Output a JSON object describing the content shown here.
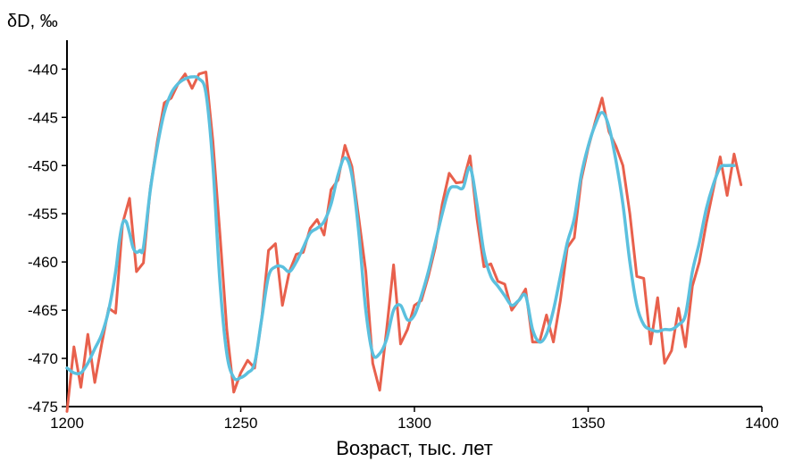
{
  "chart_data": {
    "type": "line",
    "xlabel": "Возраст, тыс. лет",
    "ylabel": "δD, ‰",
    "xlim": [
      1200,
      1400
    ],
    "ylim": [
      -475,
      -437
    ],
    "xticks": [
      1200,
      1250,
      1300,
      1350,
      1400
    ],
    "yticks": [
      -475,
      -470,
      -465,
      -460,
      -455,
      -450,
      -445,
      -440
    ],
    "grid": false,
    "legend": "none",
    "series": [
      {
        "color": "#E8604C",
        "style": "raw",
        "x": [
          1200,
          1202,
          1204,
          1206,
          1208,
          1210,
          1212,
          1214,
          1216,
          1218,
          1220,
          1222,
          1224,
          1226,
          1228,
          1230,
          1232,
          1234,
          1236,
          1238,
          1240,
          1242,
          1244,
          1246,
          1248,
          1250,
          1252,
          1254,
          1256,
          1258,
          1260,
          1262,
          1264,
          1266,
          1268,
          1270,
          1272,
          1274,
          1276,
          1278,
          1280,
          1282,
          1284,
          1286,
          1288,
          1290,
          1292,
          1294,
          1296,
          1298,
          1300,
          1302,
          1304,
          1306,
          1308,
          1310,
          1312,
          1314,
          1316,
          1318,
          1320,
          1322,
          1324,
          1326,
          1328,
          1330,
          1332,
          1334,
          1336,
          1338,
          1340,
          1342,
          1344,
          1346,
          1348,
          1350,
          1352,
          1354,
          1356,
          1358,
          1360,
          1362,
          1364,
          1366,
          1368,
          1370,
          1372,
          1374,
          1376,
          1378,
          1380,
          1382,
          1384,
          1386,
          1388,
          1390,
          1392,
          1394
        ],
        "y": [
          -475.5,
          -468.8,
          -473,
          -467.5,
          -472.5,
          -468.5,
          -464.8,
          -465.3,
          -456,
          -453.4,
          -461,
          -460.1,
          -452.3,
          -447.5,
          -443.5,
          -443,
          -441.5,
          -440.5,
          -442,
          -440.5,
          -440.3,
          -447.5,
          -457,
          -467,
          -473.5,
          -471.5,
          -470.2,
          -471,
          -466,
          -458.8,
          -458.1,
          -464.5,
          -461,
          -459.2,
          -459,
          -456.5,
          -455.6,
          -457.2,
          -452.5,
          -451.5,
          -447.9,
          -450.1,
          -455.5,
          -461,
          -470.5,
          -473.3,
          -467,
          -460.3,
          -468.5,
          -467,
          -464.5,
          -464,
          -461.5,
          -458.5,
          -454,
          -450.8,
          -451.8,
          -451.7,
          -449,
          -455.5,
          -460.5,
          -460.2,
          -462,
          -462.3,
          -465,
          -464,
          -462.8,
          -468.3,
          -468.3,
          -465.5,
          -468.3,
          -464,
          -458.5,
          -457.5,
          -451.5,
          -448.2,
          -445.5,
          -443,
          -446.5,
          -448,
          -450,
          -455,
          -461.5,
          -461.7,
          -468.5,
          -463.7,
          -470.5,
          -469.2,
          -464.8,
          -468.8,
          -462.5,
          -460,
          -456,
          -452.5,
          -449.1,
          -453.1,
          -448.8,
          -452
        ]
      },
      {
        "color": "#5BC0DE",
        "style": "smoothed",
        "x": [
          1200,
          1202,
          1204,
          1206,
          1208,
          1210,
          1212,
          1214,
          1215,
          1216,
          1217,
          1218,
          1219,
          1220,
          1221,
          1222,
          1224,
          1226,
          1228,
          1230,
          1232,
          1234,
          1236,
          1238,
          1240,
          1242,
          1244,
          1246,
          1248,
          1250,
          1252,
          1254,
          1256,
          1258,
          1260,
          1262,
          1264,
          1266,
          1268,
          1270,
          1272,
          1274,
          1276,
          1278,
          1280,
          1282,
          1284,
          1286,
          1288,
          1290,
          1292,
          1294,
          1296,
          1298,
          1300,
          1302,
          1304,
          1306,
          1308,
          1310,
          1312,
          1314,
          1316,
          1318,
          1320,
          1322,
          1324,
          1326,
          1328,
          1330,
          1332,
          1334,
          1336,
          1338,
          1340,
          1342,
          1344,
          1346,
          1348,
          1350,
          1352,
          1354,
          1356,
          1358,
          1360,
          1362,
          1364,
          1366,
          1368,
          1370,
          1372,
          1374,
          1376,
          1378,
          1380,
          1382,
          1384,
          1386,
          1388,
          1390,
          1392
        ],
        "y": [
          -471,
          -471.5,
          -471.5,
          -470.5,
          -469,
          -467.5,
          -465,
          -461,
          -458,
          -456,
          -455.8,
          -457,
          -458.5,
          -459,
          -458.8,
          -458.5,
          -452.5,
          -448,
          -444.5,
          -442.5,
          -441.5,
          -441,
          -440.8,
          -441,
          -442.5,
          -450,
          -462,
          -469.5,
          -472,
          -472,
          -471.5,
          -470.5,
          -466,
          -461.5,
          -460.5,
          -460.5,
          -461,
          -460,
          -458.5,
          -457,
          -456.5,
          -455.8,
          -454,
          -451,
          -449.2,
          -451,
          -457,
          -465,
          -469.5,
          -469.5,
          -468,
          -465,
          -464.5,
          -466,
          -465.5,
          -463.5,
          -461,
          -458,
          -455,
          -452.5,
          -452.2,
          -452.3,
          -450.2,
          -454,
          -459,
          -461.5,
          -462.5,
          -463.5,
          -464.5,
          -464,
          -463.5,
          -467,
          -468.3,
          -467.5,
          -465,
          -461.5,
          -458,
          -455.5,
          -451,
          -448,
          -445.8,
          -444.5,
          -446,
          -449.5,
          -454,
          -460,
          -464.5,
          -466.5,
          -467,
          -467.2,
          -467,
          -467,
          -466.5,
          -465.5,
          -461,
          -458,
          -454.5,
          -452,
          -450.2,
          -450,
          -450
        ]
      }
    ]
  }
}
